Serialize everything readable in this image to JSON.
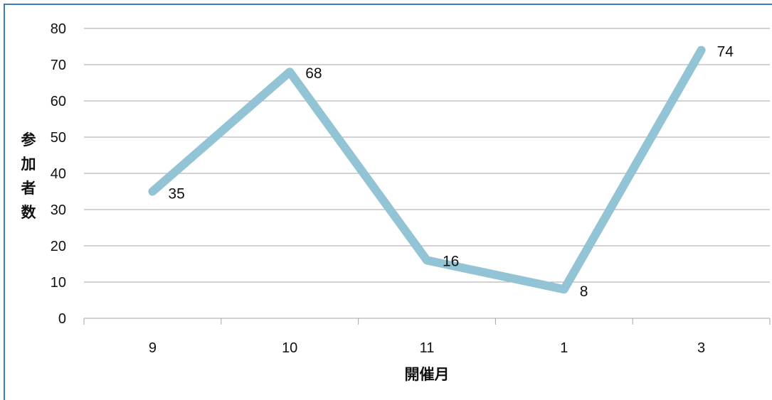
{
  "chart_data": {
    "type": "line",
    "categories": [
      "9",
      "10",
      "11",
      "1",
      "3"
    ],
    "series": [
      {
        "values": [
          35,
          68,
          16,
          8,
          74
        ]
      }
    ],
    "data_labels": [
      "35",
      "68",
      "16",
      "8",
      "74"
    ],
    "xlabel": "開催月",
    "ylabel": "参加者数",
    "ylim": [
      0,
      80
    ],
    "yticks": [
      "0",
      "10",
      "20",
      "30",
      "40",
      "50",
      "60",
      "70",
      "80"
    ],
    "grid": "horizontal",
    "legend": "none",
    "line_color": "#93c4d6",
    "grid_color": "#a6a6a6",
    "frame_color": "#3a7ebf"
  }
}
